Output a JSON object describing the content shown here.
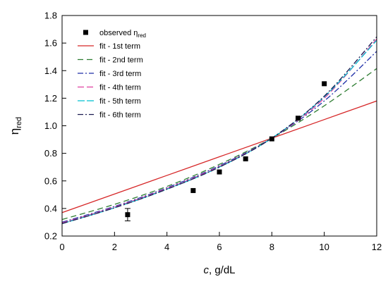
{
  "chart_data": {
    "type": "line",
    "xlabel_italic": "c",
    "xlabel_rest": ", g/dL",
    "ylabel_main": "η",
    "ylabel_sub": "red",
    "xlim": [
      0,
      12
    ],
    "ylim": [
      0.2,
      1.8
    ],
    "xticks": [
      0,
      2,
      4,
      6,
      8,
      10,
      12
    ],
    "yticks": [
      "0.2",
      "0.4",
      "0.6",
      "0.8",
      "1.0",
      "1.2",
      "1.4",
      "1.6",
      "1.8"
    ],
    "grid": false,
    "legend_position": "top-left",
    "observed": {
      "name_main": "observed η",
      "name_sub": "red",
      "x": [
        2.5,
        5,
        6,
        7,
        8,
        9,
        10
      ],
      "y": [
        0.355,
        0.53,
        0.665,
        0.76,
        0.905,
        1.055,
        1.305
      ],
      "err": [
        0.045,
        0.015,
        0.01,
        0.01,
        0.01,
        0.01,
        0.005
      ],
      "color": "#000000"
    },
    "series": [
      {
        "name": "fit - 1st term",
        "color": "#d62728",
        "dash": "",
        "x": [
          0,
          2,
          4,
          6,
          8,
          10,
          12
        ],
        "y": [
          0.37,
          0.505,
          0.64,
          0.775,
          0.91,
          1.045,
          1.18
        ]
      },
      {
        "name": "fit - 2nd term",
        "color": "#2e7d32",
        "dash": "8,5",
        "x": [
          0,
          2,
          4,
          6,
          8,
          10,
          12
        ],
        "y": [
          0.32,
          0.43,
          0.56,
          0.72,
          0.91,
          1.145,
          1.415
        ]
      },
      {
        "name": "fit - 3rd term",
        "color": "#1f2fa8",
        "dash": "8,3,2,3",
        "x": [
          0,
          2,
          4,
          6,
          8,
          10,
          12
        ],
        "y": [
          0.3,
          0.415,
          0.55,
          0.71,
          0.91,
          1.18,
          1.54
        ]
      },
      {
        "name": "fit - 4th term",
        "color": "#e040a0",
        "dash": "9,4",
        "x": [
          0,
          2,
          4,
          6,
          8,
          10,
          12
        ],
        "y": [
          0.295,
          0.41,
          0.545,
          0.705,
          0.91,
          1.2,
          1.63
        ]
      },
      {
        "name": "fit - 5th term",
        "color": "#00c0d0",
        "dash": "10,3",
        "x": [
          0,
          2,
          4,
          6,
          8,
          10,
          12
        ],
        "y": [
          0.29,
          0.405,
          0.54,
          0.7,
          0.91,
          1.21,
          1.62
        ]
      },
      {
        "name": "fit - 6th term",
        "color": "#1a1a50",
        "dash": "8,3,2,3",
        "x": [
          0,
          2,
          4,
          6,
          8,
          10,
          12
        ],
        "y": [
          0.29,
          0.405,
          0.54,
          0.7,
          0.91,
          1.215,
          1.645
        ]
      }
    ]
  }
}
